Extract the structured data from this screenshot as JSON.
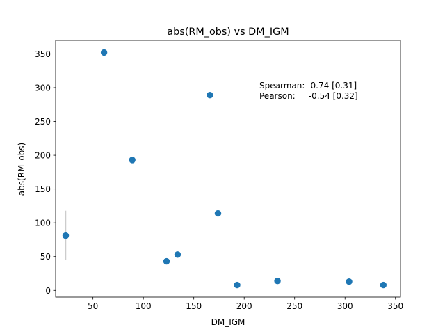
{
  "chart_data": {
    "type": "scatter",
    "title": "abs(RM_obs) vs DM_IGM",
    "xlabel": "DM_IGM",
    "ylabel": "abs(RM_obs)",
    "xlim": [
      13,
      355
    ],
    "ylim": [
      -10,
      370
    ],
    "xticks": [
      50,
      100,
      150,
      200,
      250,
      300,
      350
    ],
    "yticks": [
      0,
      50,
      100,
      150,
      200,
      250,
      300,
      350
    ],
    "grid": false,
    "color": "#1f77b4",
    "errorbar_color": "#cccccc",
    "points": [
      {
        "x": 23,
        "y": 81,
        "yerr_low": 45,
        "yerr_high": 118
      },
      {
        "x": 61,
        "y": 352
      },
      {
        "x": 89,
        "y": 193
      },
      {
        "x": 123,
        "y": 43
      },
      {
        "x": 134,
        "y": 53
      },
      {
        "x": 166,
        "y": 289
      },
      {
        "x": 174,
        "y": 114
      },
      {
        "x": 193,
        "y": 8
      },
      {
        "x": 233,
        "y": 14
      },
      {
        "x": 304,
        "y": 13
      },
      {
        "x": 338,
        "y": 8
      }
    ],
    "annotations": [
      "Spearman: -0.74 [0.31]",
      "Pearson:     -0.54 [0.32]"
    ]
  }
}
